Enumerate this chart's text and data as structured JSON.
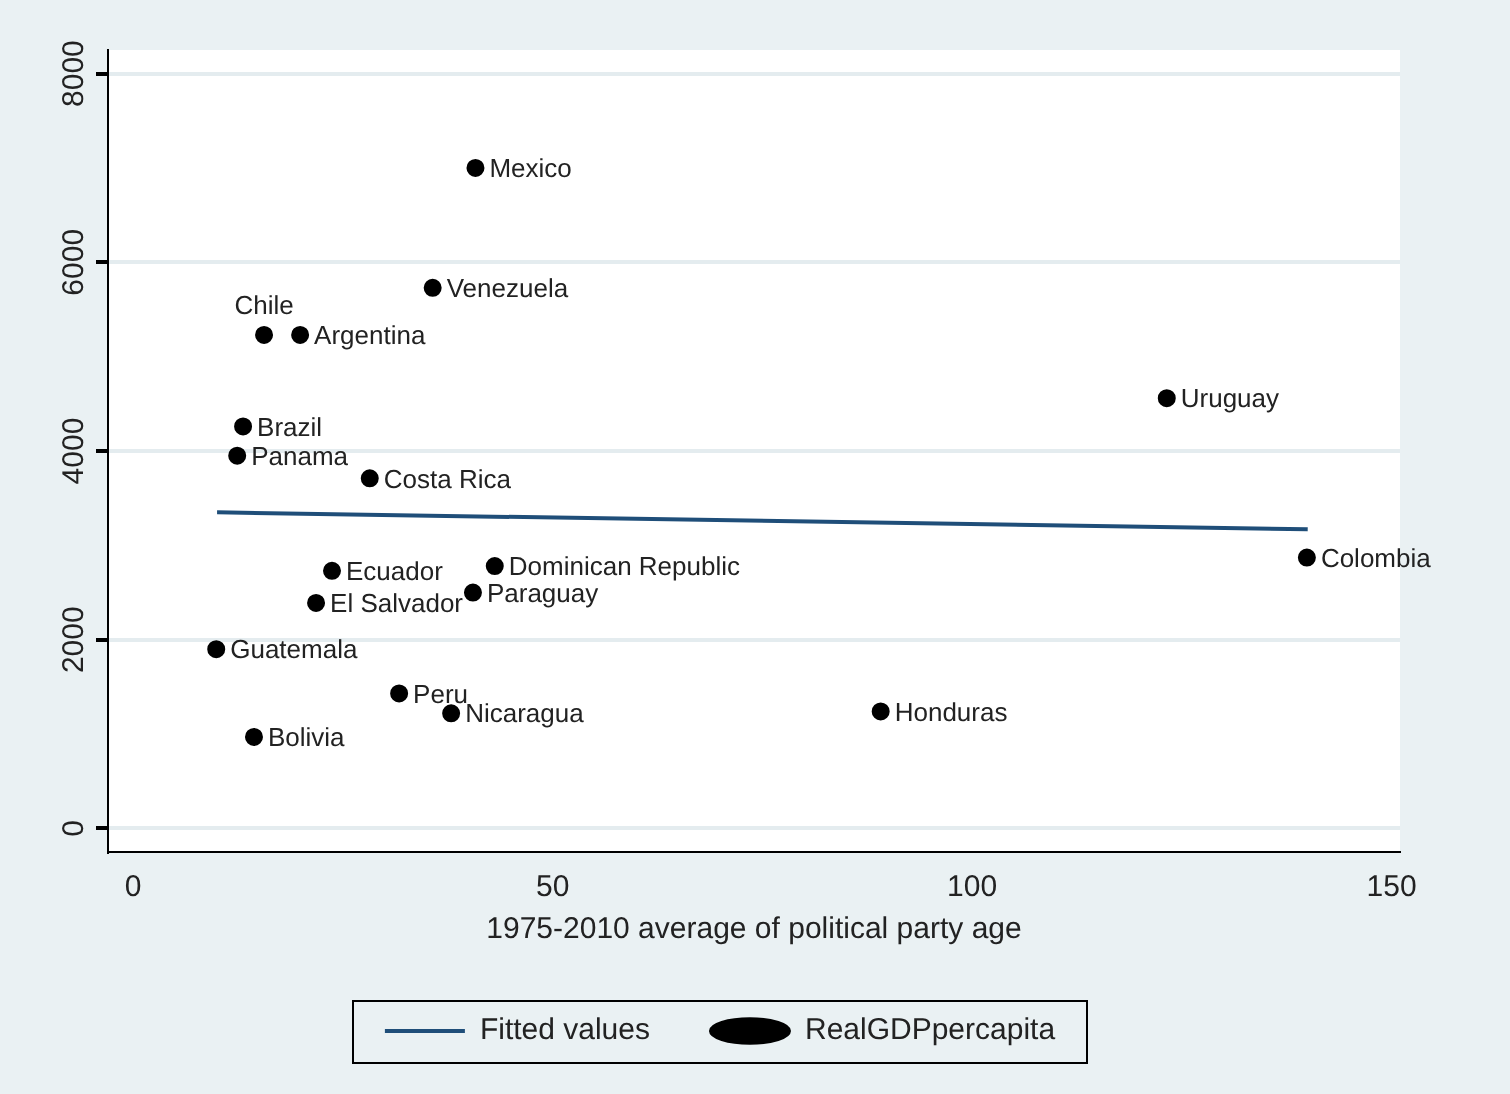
{
  "chart_data": {
    "type": "scatter",
    "xlabel": "1975-2010 average of political party age",
    "series": [
      {
        "name": "Fitted values",
        "type": "line",
        "color": "#1f4e79",
        "marker": "none",
        "line_style": "solid",
        "x": [
          10,
          140
        ],
        "values": [
          3350,
          3170
        ]
      },
      {
        "name": "RealGDPpercapita",
        "type": "scatter",
        "color": "#000000",
        "marker": "circle",
        "x": [
          40.8,
          35.7,
          15.6,
          19.9,
          13.1,
          12.4,
          28.2,
          23.7,
          43.1,
          40.5,
          21.8,
          9.9,
          31.7,
          37.9,
          14.4,
          123.2,
          139.9,
          89.1
        ],
        "values": [
          7000,
          5730,
          5230,
          5230,
          4260,
          3950,
          3710,
          2730,
          2780,
          2500,
          2390,
          1900,
          1430,
          1220,
          970,
          4560,
          2870,
          1240
        ]
      }
    ],
    "annotations": [
      {
        "text": "Mexico",
        "x": 40.8,
        "y": 7000
      },
      {
        "text": "Venezuela",
        "x": 35.7,
        "y": 5730
      },
      {
        "text": "Chile",
        "x": 15.6,
        "y": 5230
      },
      {
        "text": "Argentina",
        "x": 19.9,
        "y": 5230
      },
      {
        "text": "Brazil",
        "x": 13.1,
        "y": 4260
      },
      {
        "text": "Panama",
        "x": 12.4,
        "y": 3950
      },
      {
        "text": "Costa Rica",
        "x": 28.2,
        "y": 3710
      },
      {
        "text": "Ecuador",
        "x": 23.7,
        "y": 2730
      },
      {
        "text": "Dominican Republic",
        "x": 43.1,
        "y": 2780
      },
      {
        "text": "Paraguay",
        "x": 40.5,
        "y": 2500
      },
      {
        "text": "El Salvador",
        "x": 21.8,
        "y": 2390
      },
      {
        "text": "Guatemala",
        "x": 9.9,
        "y": 1900
      },
      {
        "text": "Peru",
        "x": 31.7,
        "y": 1430
      },
      {
        "text": "Nicaragua",
        "x": 37.9,
        "y": 1220
      },
      {
        "text": "Bolivia",
        "x": 14.4,
        "y": 970
      },
      {
        "text": "Uruguay",
        "x": 123.2,
        "y": 4560
      },
      {
        "text": "Colombia",
        "x": 139.9,
        "y": 2870
      },
      {
        "text": "Honduras",
        "x": 89.1,
        "y": 1240
      }
    ],
    "xlim": [
      -3,
      151
    ],
    "ylim": [
      -250,
      8250
    ],
    "xticks": [
      0,
      50,
      100,
      150
    ],
    "yticks": [
      0,
      2000,
      4000,
      6000,
      8000
    ],
    "grid": "y",
    "legend": "bottom"
  }
}
